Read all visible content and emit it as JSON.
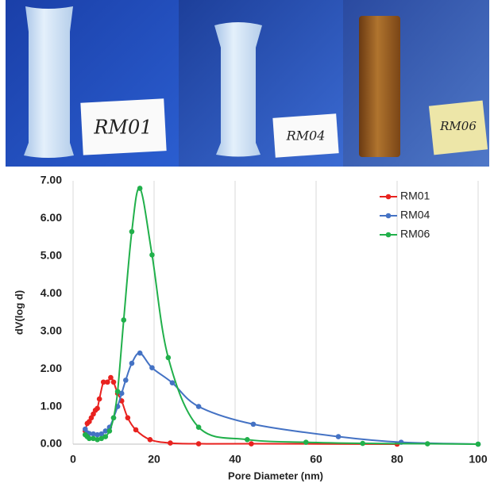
{
  "photos": [
    {
      "label": "RM01"
    },
    {
      "label": "RM04"
    },
    {
      "label": "RM06"
    }
  ],
  "chart_data": {
    "type": "line",
    "xlabel": "Pore Diameter (nm)",
    "ylabel": "dV(log d)",
    "xlim": [
      0,
      100
    ],
    "ylim": [
      0,
      7
    ],
    "xticks": [
      0,
      20,
      40,
      60,
      80,
      100
    ],
    "yticks": [
      {
        "value": 0,
        "label": "0.00"
      },
      {
        "value": 1,
        "label": "1.00"
      },
      {
        "value": 2,
        "label": "2.00"
      },
      {
        "value": 3,
        "label": "3.00"
      },
      {
        "value": 4,
        "label": "4.00"
      },
      {
        "value": 5,
        "label": "5.00"
      },
      {
        "value": 6,
        "label": "6.00"
      },
      {
        "value": 7,
        "label": "7.00"
      }
    ],
    "grid": "x",
    "legend": "upper right",
    "series": [
      {
        "name": "RM01",
        "color": "#e8221f",
        "x": [
          3,
          3.5,
          4,
          4.5,
          5,
          5.5,
          6,
          6.5,
          7.5,
          8.5,
          9.3,
          10,
          11,
          12,
          13.5,
          15.5,
          19,
          24,
          31,
          44,
          80
        ],
        "values": [
          0.35,
          0.55,
          0.6,
          0.7,
          0.8,
          0.9,
          0.95,
          1.2,
          1.65,
          1.65,
          1.77,
          1.65,
          1.35,
          1.15,
          0.7,
          0.38,
          0.12,
          0.03,
          0.01,
          0.01,
          0
        ]
      },
      {
        "name": "RM04",
        "color": "#4472c4",
        "x": [
          3,
          3.5,
          4,
          5,
          6,
          7,
          8,
          9,
          10,
          11,
          12,
          13,
          14.5,
          16.5,
          19.5,
          24.5,
          31,
          44.5,
          65.5,
          81,
          100
        ],
        "values": [
          0.4,
          0.3,
          0.28,
          0.27,
          0.25,
          0.27,
          0.35,
          0.45,
          0.7,
          1.0,
          1.35,
          1.7,
          2.15,
          2.42,
          2.03,
          1.63,
          1.0,
          0.53,
          0.2,
          0.05,
          0
        ]
      },
      {
        "name": "RM06",
        "color": "#21b04b",
        "x": [
          3,
          3.5,
          4,
          5,
          6,
          7,
          8,
          9,
          10,
          11,
          12.5,
          14.5,
          16.5,
          19.5,
          23.5,
          31,
          43,
          57.5,
          71.5,
          87.5,
          100
        ],
        "values": [
          0.25,
          0.2,
          0.15,
          0.15,
          0.12,
          0.15,
          0.2,
          0.35,
          0.7,
          1.4,
          3.3,
          5.65,
          6.8,
          5.03,
          2.3,
          0.45,
          0.12,
          0.05,
          0.02,
          0.01,
          0
        ]
      }
    ]
  }
}
